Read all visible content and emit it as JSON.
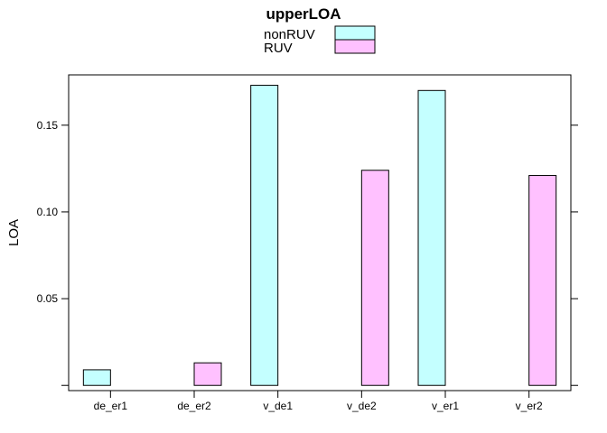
{
  "chart_data": {
    "type": "bar",
    "title": "upperLOA",
    "ylabel": "LOA",
    "xlabel": "",
    "categories": [
      "de_er1",
      "de_er2",
      "v_de1",
      "v_de2",
      "v_er1",
      "v_er2"
    ],
    "yticks": [
      0.05,
      0.1,
      0.15
    ],
    "ytick_labels": [
      "0.05",
      "0.10",
      "0.15"
    ],
    "ylim": [
      -0.003,
      0.179
    ],
    "legend_position": "top",
    "series": [
      {
        "name": "nonRUV",
        "color": "#c4ffff",
        "values": [
          0.009,
          null,
          0.173,
          null,
          0.17,
          null
        ]
      },
      {
        "name": "RUV",
        "color": "#ffc1ff",
        "values": [
          null,
          0.013,
          null,
          0.124,
          null,
          0.121
        ]
      }
    ]
  }
}
